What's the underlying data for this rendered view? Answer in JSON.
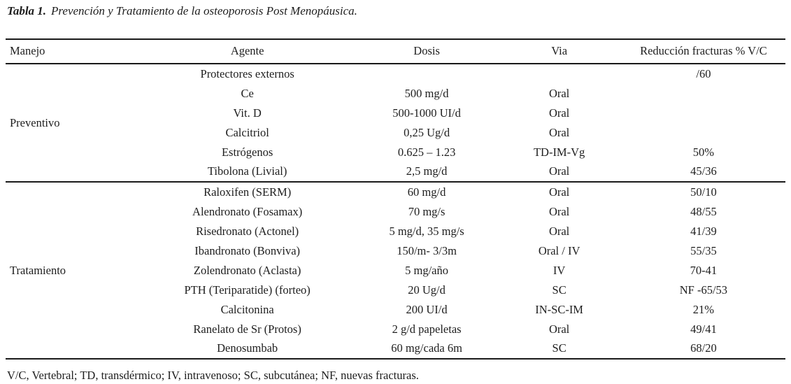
{
  "title": {
    "label": "Tabla 1.",
    "text": "Prevención y Tratamiento de la osteoporosis Post Menopáusica."
  },
  "table": {
    "columns": [
      "Manejo",
      "Agente",
      "Dosis",
      "Via",
      "Reducción fracturas % V/C"
    ],
    "sections": [
      {
        "manejo": "Preventivo",
        "rows": [
          {
            "agente": "Protectores externos",
            "dosis": "",
            "via": "",
            "reduccion": "/60"
          },
          {
            "agente": "Ce",
            "dosis": "500 mg/d",
            "via": "Oral",
            "reduccion": ""
          },
          {
            "agente": "Vit. D",
            "dosis": "500-1000 UI/d",
            "via": "Oral",
            "reduccion": ""
          },
          {
            "agente": "Calcitriol",
            "dosis": "0,25 Ug/d",
            "via": "Oral",
            "reduccion": ""
          },
          {
            "agente": "Estrógenos",
            "dosis": "0.625 – 1.23",
            "via": "TD-IM-Vg",
            "reduccion": "50%"
          },
          {
            "agente": "Tibolona (Livial)",
            "dosis": "2,5 mg/d",
            "via": "Oral",
            "reduccion": "45/36"
          }
        ]
      },
      {
        "manejo": "Tratamiento",
        "rows": [
          {
            "agente": "Raloxifen (SERM)",
            "dosis": "60 mg/d",
            "via": "Oral",
            "reduccion": "50/10"
          },
          {
            "agente": "Alendronato (Fosamax)",
            "dosis": "70 mg/s",
            "via": "Oral",
            "reduccion": "48/55"
          },
          {
            "agente": "Risedronato (Actonel)",
            "dosis": "5 mg/d, 35 mg/s",
            "via": "Oral",
            "reduccion": "41/39"
          },
          {
            "agente": "Ibandronato (Bonviva)",
            "dosis": "150/m- 3/3m",
            "via": "Oral / IV",
            "reduccion": "55/35"
          },
          {
            "agente": "Zolendronato (Aclasta)",
            "dosis": "5 mg/año",
            "via": "IV",
            "reduccion": "70-41"
          },
          {
            "agente": "PTH (Teriparatide) (forteo)",
            "dosis": "20 Ug/d",
            "via": "SC",
            "reduccion": "NF -65/53"
          },
          {
            "agente": "Calcitonina",
            "dosis": "200 UI/d",
            "via": "IN-SC-IM",
            "reduccion": "21%"
          },
          {
            "agente": "Ranelato de Sr (Protos)",
            "dosis": "2 g/d papeletas",
            "via": "Oral",
            "reduccion": "49/41"
          },
          {
            "agente": "Denosumbab",
            "dosis": "60 mg/cada 6m",
            "via": "SC",
            "reduccion": "68/20"
          }
        ]
      }
    ]
  },
  "footnote": "V/C, Vertebral; TD, transdérmico; IV, intravenoso; SC, subcutánea; NF, nuevas fracturas.",
  "colors": {
    "text": "#1e1e1e",
    "rule": "#1a1a1a",
    "background": "#ffffff"
  }
}
